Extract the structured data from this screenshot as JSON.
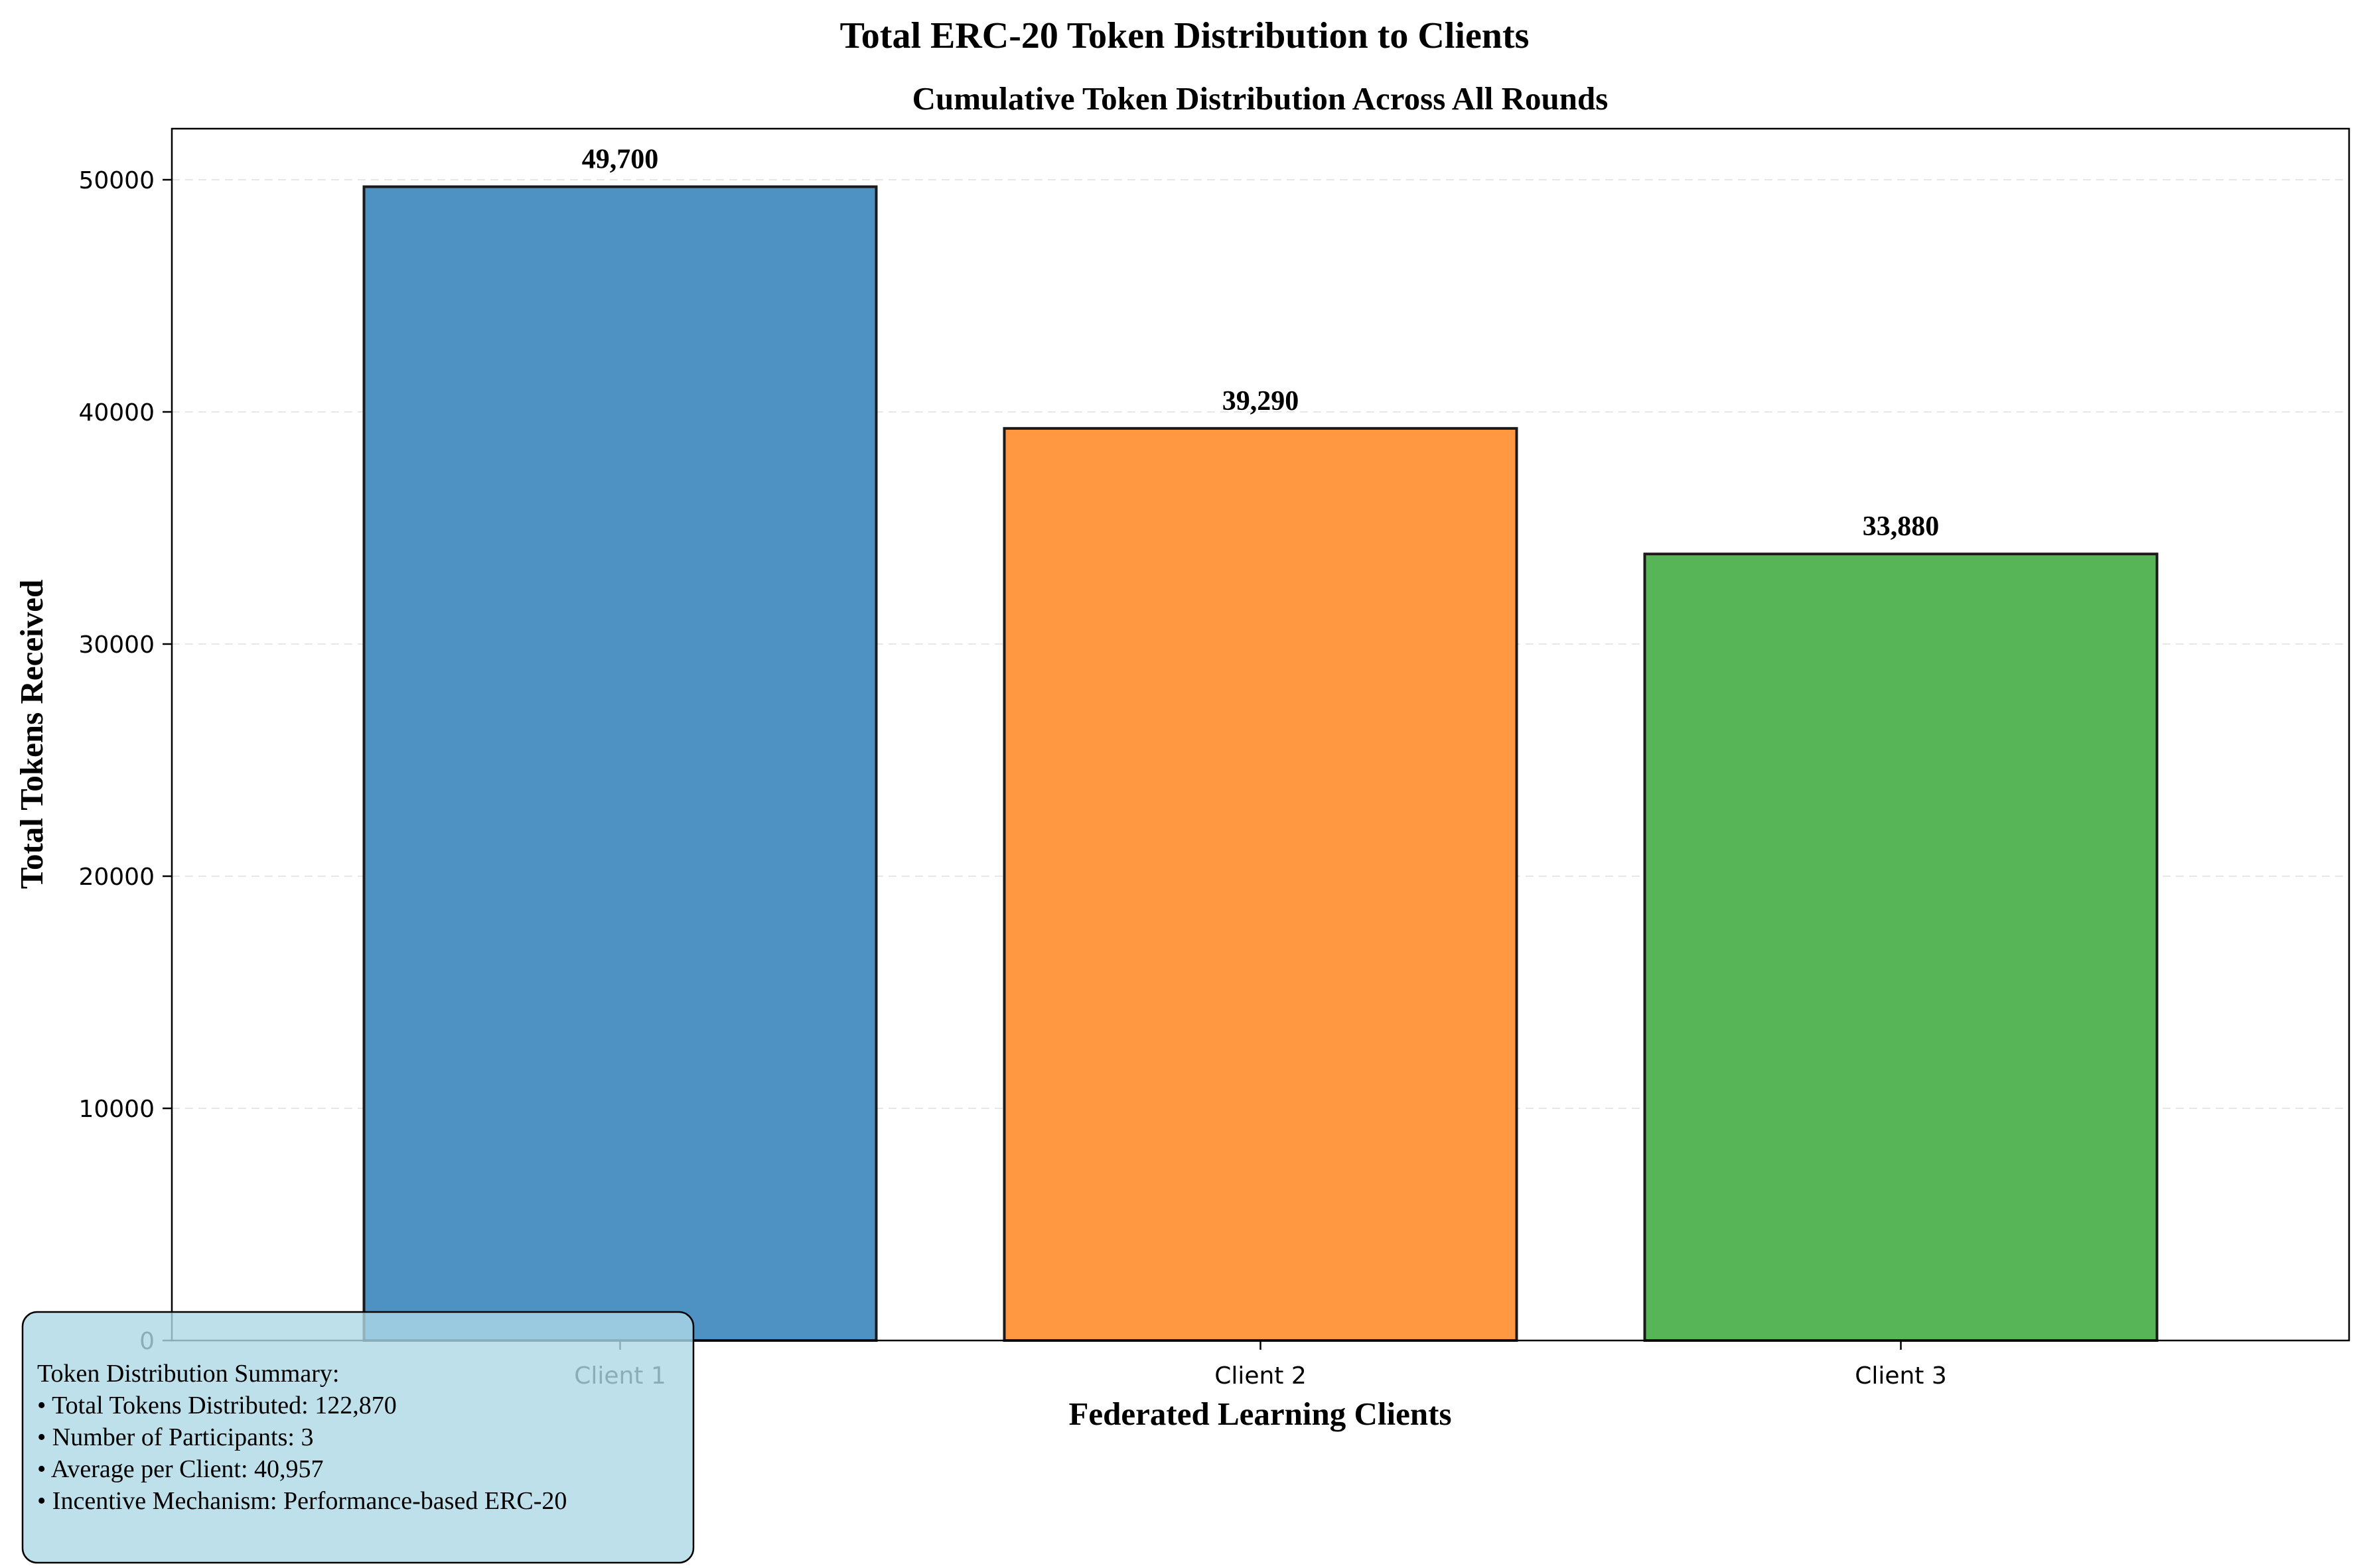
{
  "chart_data": {
    "type": "bar",
    "title": "Total ERC-20 Token Distribution to Clients",
    "subtitle": "Cumulative Token Distribution Across All Rounds",
    "xlabel": "Federated Learning Clients",
    "ylabel": "Total Tokens Received",
    "categories": [
      "Client 1",
      "Client 2",
      "Client 3"
    ],
    "values": [
      49700,
      39290,
      33880
    ],
    "value_labels": [
      "49,700",
      "39,290",
      "33,880"
    ],
    "colors": [
      "#4d92c3",
      "#ff9840",
      "#57b557"
    ],
    "ylim": [
      0,
      52200
    ],
    "yticks": [
      0,
      10000,
      20000,
      30000,
      40000,
      50000
    ],
    "ytick_labels": [
      "0",
      "10000",
      "20000",
      "30000",
      "40000",
      "50000"
    ],
    "grid": "y-dashed",
    "annotation": {
      "title": "Token Distribution Summary:",
      "lines": [
        "• Total Tokens Distributed: 122,870",
        "• Number of Participants: 3",
        "• Average per Client: 40,957",
        "• Incentive Mechanism: Performance-based ERC-20"
      ],
      "placement": "bottom-left",
      "background": "#add8e6"
    }
  }
}
